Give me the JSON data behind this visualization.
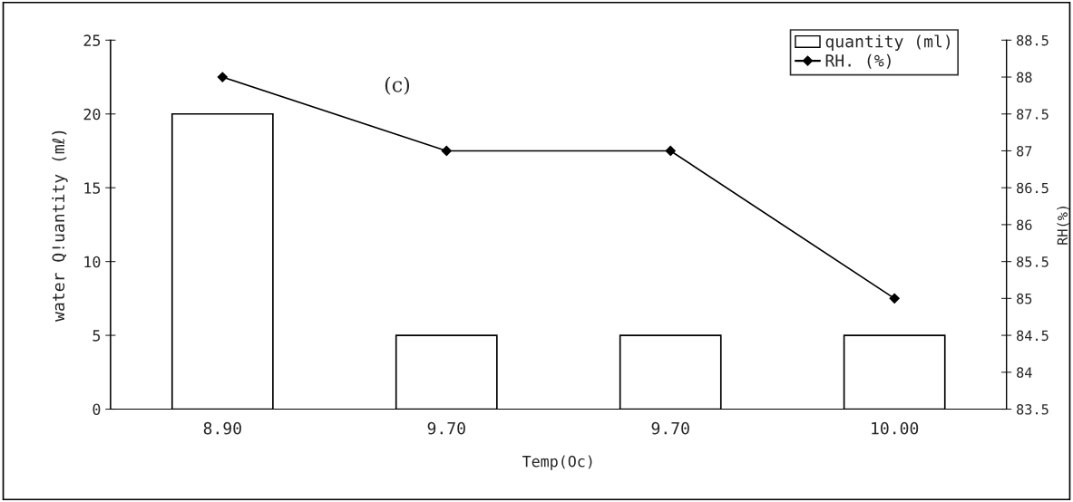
{
  "chart_data": {
    "type": "bar",
    "categories": [
      "8.90",
      "9.70",
      "9.70",
      "10.00"
    ],
    "series": [
      {
        "name": "quantity (ml)",
        "color": "#ffffff",
        "values": [
          20,
          5,
          5,
          5
        ]
      },
      {
        "name": "RH. (%)",
        "type": "line",
        "axis": "y2",
        "color": "#000000",
        "marker": "diamond",
        "values": [
          88,
          87,
          87,
          85
        ]
      }
    ],
    "xlabel": "Temp(Oc)",
    "ylabel": "water Q!uantity (mℓ)",
    "y2label": "RH(%)",
    "annotations": [
      "(c)"
    ],
    "ylim": [
      0,
      25
    ],
    "yticks": [
      0,
      5,
      10,
      15,
      20,
      25
    ],
    "y2lim": [
      83.5,
      88.5
    ],
    "y2ticks": [
      83.5,
      84,
      84.5,
      85,
      85.5,
      86,
      86.5,
      87,
      87.5,
      88,
      88.5
    ],
    "legend": "top right",
    "grid": false
  }
}
